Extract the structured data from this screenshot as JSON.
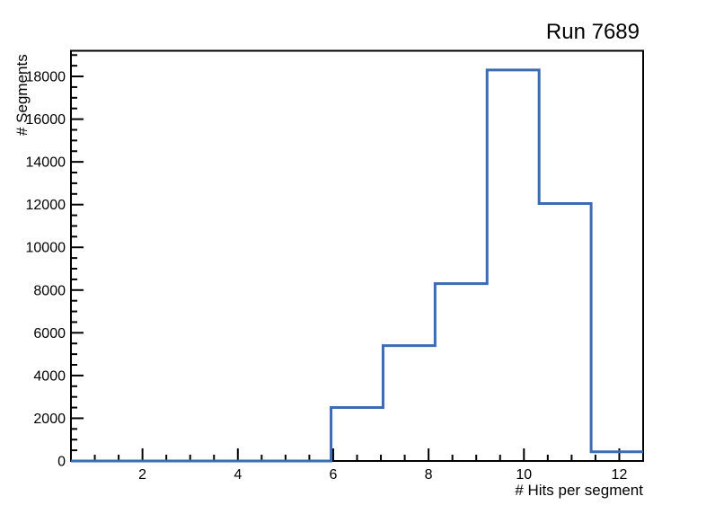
{
  "window": {
    "background": "#ffffff"
  },
  "chart_data": {
    "type": "bar",
    "subtype": "step-histogram-outline",
    "title": "Run 7689",
    "xlabel": "# Hits per segment",
    "ylabel": "# Segments",
    "xlim": [
      0.5,
      12.5
    ],
    "ylim": [
      0,
      19200
    ],
    "bin_edges": [
      0.5,
      1.591,
      2.682,
      3.773,
      4.864,
      5.955,
      7.045,
      8.136,
      9.227,
      10.318,
      11.409,
      12.5
    ],
    "counts": [
      0,
      0,
      0,
      0,
      0,
      2500,
      5400,
      8300,
      18300,
      12050,
      430
    ],
    "x_major_ticks": [
      2,
      4,
      6,
      8,
      10,
      12
    ],
    "x_minor_step": 0.5,
    "y_major_ticks": [
      0,
      2000,
      4000,
      6000,
      8000,
      10000,
      12000,
      14000,
      16000,
      18000
    ],
    "y_minor_step": 500,
    "grid": false,
    "legend": null,
    "line_color": "#3b6bb4",
    "axis_color": "#000000",
    "text_color": "#000000",
    "background": "#ffffff"
  }
}
